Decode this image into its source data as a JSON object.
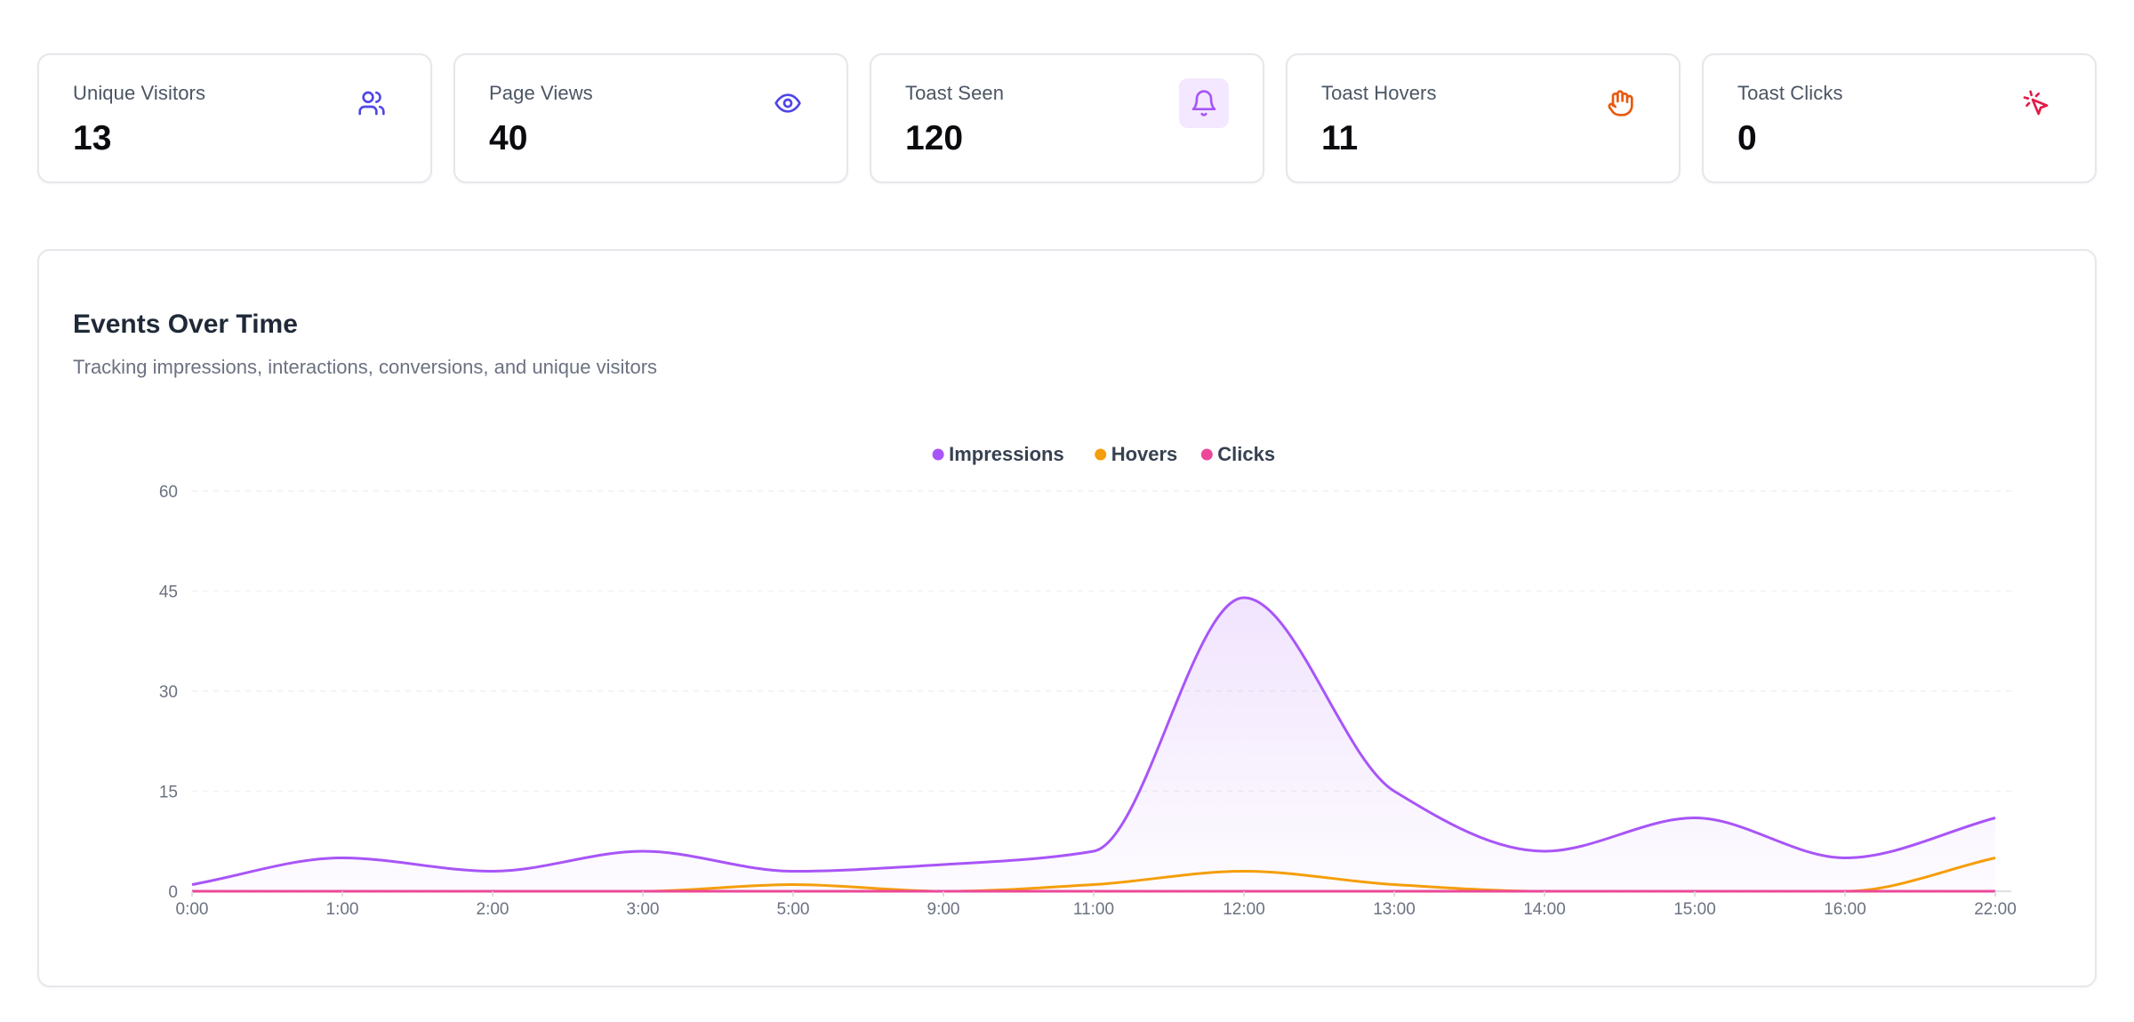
{
  "stats": [
    {
      "label": "Unique Visitors",
      "value": "13",
      "icon": "users-icon",
      "color": "#4f46e5"
    },
    {
      "label": "Page Views",
      "value": "40",
      "icon": "eye-icon",
      "color": "#4f46e5"
    },
    {
      "label": "Toast Seen",
      "value": "120",
      "icon": "bell-icon",
      "color": "#a855f7"
    },
    {
      "label": "Toast Hovers",
      "value": "11",
      "icon": "hand-icon",
      "color": "#ea580c"
    },
    {
      "label": "Toast Clicks",
      "value": "0",
      "icon": "cursor-click-icon",
      "color": "#e11d48"
    }
  ],
  "events_chart": {
    "title": "Events Over Time",
    "subtitle": "Tracking impressions, interactions, conversions, and unique visitors"
  },
  "chart_data": {
    "type": "line",
    "categories": [
      "0:00",
      "1:00",
      "2:00",
      "3:00",
      "5:00",
      "9:00",
      "11:00",
      "12:00",
      "13:00",
      "14:00",
      "15:00",
      "16:00",
      "22:00"
    ],
    "series": [
      {
        "name": "Impressions",
        "color": "#a855f7",
        "values": [
          1,
          5,
          3,
          6,
          3,
          4,
          6,
          44,
          15,
          6,
          11,
          5,
          11
        ]
      },
      {
        "name": "Hovers",
        "color": "#f59e0b",
        "values": [
          0,
          0,
          0,
          0,
          1,
          0,
          1,
          3,
          1,
          0,
          0,
          0,
          5
        ]
      },
      {
        "name": "Clicks",
        "color": "#ec4899",
        "values": [
          0,
          0,
          0,
          0,
          0,
          0,
          0,
          0,
          0,
          0,
          0,
          0,
          0
        ]
      }
    ],
    "ylim": [
      0,
      60
    ],
    "yticks": [
      0,
      15,
      30,
      45,
      60
    ],
    "grid": true,
    "legend": "top-center"
  }
}
